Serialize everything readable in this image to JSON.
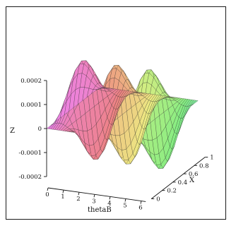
{
  "chart_data": {
    "type": "surface",
    "title": "",
    "xlabel": "thetaB",
    "ylabel": "X",
    "zlabel": "Z",
    "theta_range": [
      0,
      6.2832
    ],
    "x_range": [
      0,
      1
    ],
    "z_range": [
      -0.0002,
      0.0002
    ],
    "theta_ticks": [
      "0",
      "1",
      "2",
      "3",
      "4",
      "5",
      "6"
    ],
    "x_ticks": [
      "0",
      "0.2",
      "0.4",
      "0.6",
      "0.8",
      "1"
    ],
    "z_ticks": [
      "0.0002",
      "0.0001",
      "0",
      "-0.0001",
      "-0.0002"
    ],
    "series": [
      {
        "x_value": 0.0,
        "z_of_thetaB": "0"
      },
      {
        "x_value": 0.5,
        "z_of_thetaB": "0.0002*sin(3*thetaB)*sin(pi*X)^2"
      },
      {
        "x_value": 1.0,
        "z_of_thetaB": "0"
      }
    ],
    "peak_amplitude": 0.0002,
    "oscillations": 3,
    "grid": false,
    "colormap": "rainbow (purple → pink → yellow → green → cyan)"
  }
}
